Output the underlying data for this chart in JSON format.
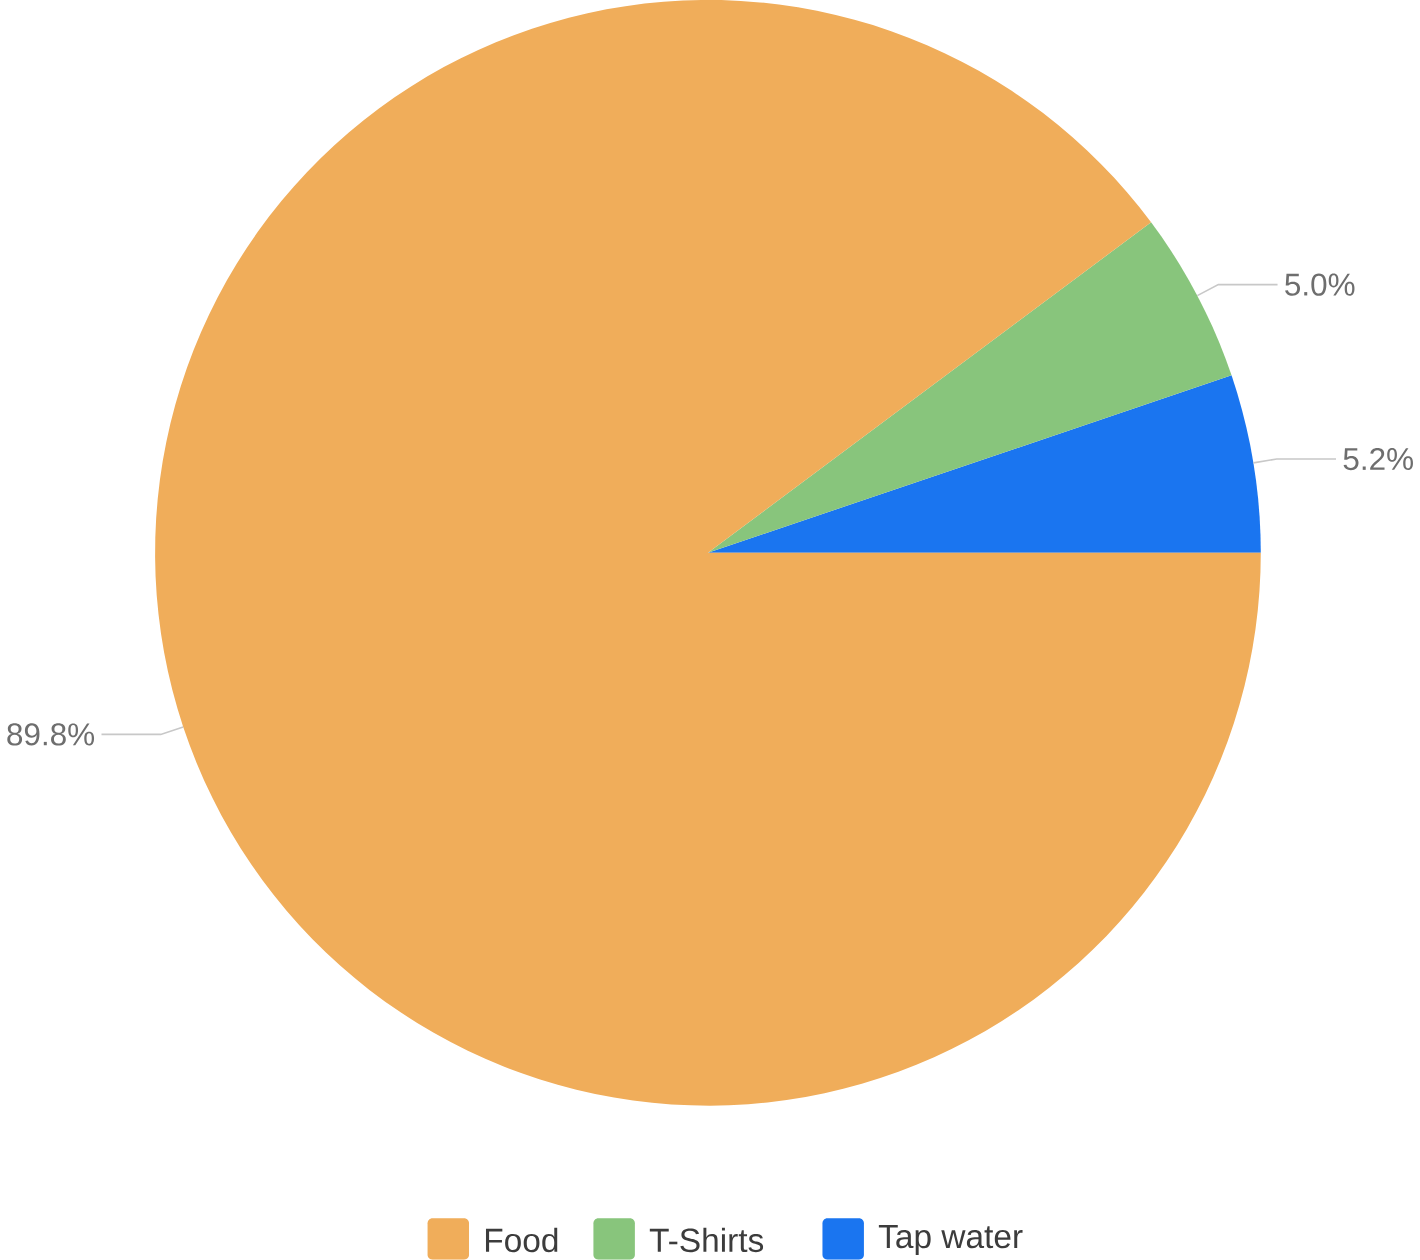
{
  "chart_data": {
    "type": "pie",
    "categories": [
      "Food",
      "T-Shirts",
      "Tap water"
    ],
    "values": [
      89.8,
      5.0,
      5.2
    ],
    "value_labels": [
      "89.8%",
      "5.0%",
      "5.2%"
    ],
    "colors": [
      "#f0ad5a",
      "#88c57c",
      "#1a75f0"
    ],
    "legend": "bottom"
  }
}
